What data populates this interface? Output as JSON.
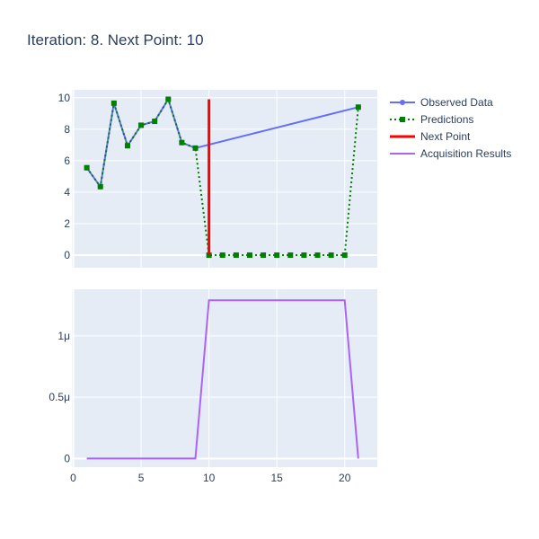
{
  "chart_data": {
    "title": "Iteration: 8. Next Point: 10",
    "legend": {
      "placement": "top-right",
      "items": [
        {
          "label": "Observed Data",
          "color": "#636efa",
          "style": "line-markers-circle"
        },
        {
          "label": "Predictions",
          "color": "#008000",
          "style": "dotted-markers-square"
        },
        {
          "label": "Next Point",
          "color": "#ff0000",
          "style": "line"
        },
        {
          "label": "Acquisition Results",
          "color": "#ab63fa",
          "style": "line"
        }
      ]
    },
    "x_axis": {
      "range": [
        -0.1,
        22.4
      ],
      "ticks": [
        0,
        5,
        10,
        15,
        20
      ],
      "tick_labels": [
        "0",
        "5",
        "10",
        "15",
        "20"
      ]
    },
    "top": {
      "type": "line",
      "y_range": [
        -0.8,
        10.5
      ],
      "y_ticks": [
        0,
        2,
        4,
        6,
        8,
        10
      ],
      "y_tick_labels": [
        "0",
        "2",
        "4",
        "6",
        "8",
        "10"
      ],
      "grid": true,
      "series": [
        {
          "name": "Observed Data",
          "color": "#636efa",
          "x": [
            1,
            2,
            3,
            4,
            5,
            6,
            7,
            8,
            9,
            21
          ],
          "y": [
            5.55,
            4.35,
            9.65,
            6.95,
            8.25,
            8.5,
            9.9,
            7.15,
            6.8,
            9.4
          ]
        },
        {
          "name": "Predictions",
          "color": "#008000",
          "x": [
            1,
            2,
            3,
            4,
            5,
            6,
            7,
            8,
            9,
            10,
            11,
            12,
            13,
            14,
            15,
            16,
            17,
            18,
            19,
            20,
            21
          ],
          "y": [
            5.55,
            4.35,
            9.65,
            6.95,
            8.25,
            8.5,
            9.9,
            7.15,
            6.8,
            0,
            0,
            0,
            0,
            0,
            0,
            0,
            0,
            0,
            0,
            0,
            9.4
          ]
        },
        {
          "name": "Next Point",
          "color": "#ff0000",
          "x": [
            10,
            10
          ],
          "y": [
            0,
            9.9
          ]
        }
      ]
    },
    "bottom": {
      "type": "line",
      "y_range": [
        -7e-08,
        1.38e-06
      ],
      "y_ticks": [
        0,
        5e-07,
        1e-06
      ],
      "y_tick_labels": [
        "0",
        "0.5μ",
        "1μ"
      ],
      "grid": true,
      "series": [
        {
          "name": "Acquisition Results",
          "color": "#ab63fa",
          "x": [
            1,
            2,
            3,
            4,
            5,
            6,
            7,
            8,
            9,
            10,
            11,
            12,
            13,
            14,
            15,
            16,
            17,
            18,
            19,
            20,
            21
          ],
          "y": [
            0,
            0,
            0,
            0,
            0,
            0,
            0,
            0,
            0,
            1.29e-06,
            1.29e-06,
            1.29e-06,
            1.29e-06,
            1.29e-06,
            1.29e-06,
            1.29e-06,
            1.29e-06,
            1.29e-06,
            1.29e-06,
            1.29e-06,
            0
          ]
        }
      ]
    }
  }
}
